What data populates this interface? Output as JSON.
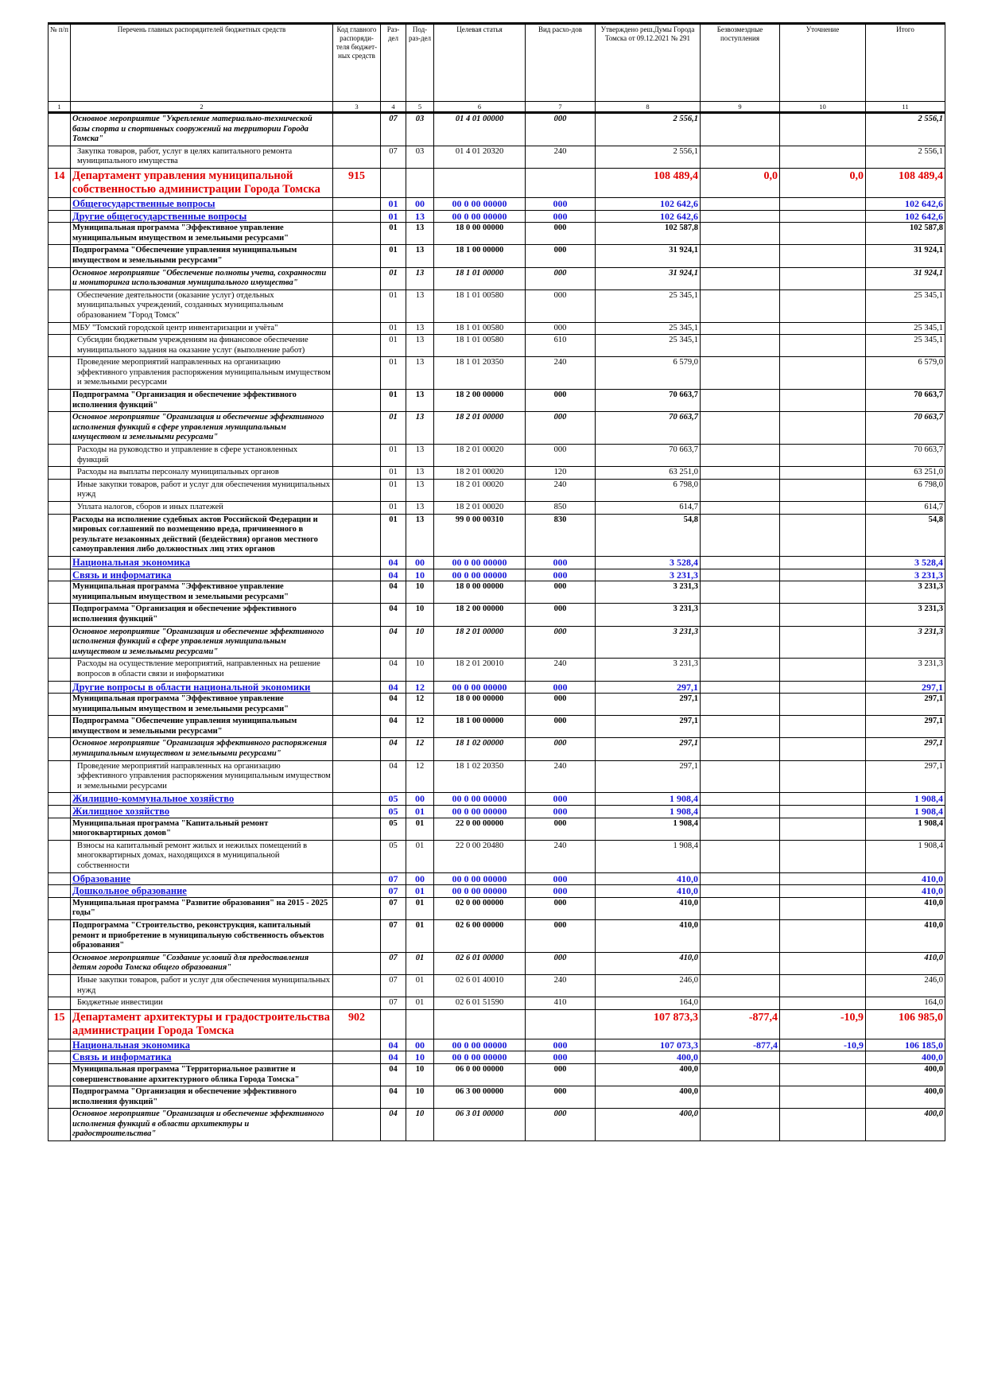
{
  "header": {
    "columns": [
      "№ п/п",
      "Перечень главных распорядителей бюджетных средств",
      "Код главного распоряди-теля бюджет-ных средств",
      "Раз-дел",
      "Под-раз-дел",
      "Целевая статья",
      "Вид расхо-дов",
      "Утверждено реш.Думы Города Томска от 09.12.2021 № 291",
      "Безвозмездные поступления",
      "Уточнение",
      "Итого"
    ],
    "numbers": [
      "1",
      "2",
      "3",
      "4",
      "5",
      "6",
      "7",
      "8",
      "9",
      "10",
      "11"
    ]
  },
  "table": {
    "rows": [
      {
        "style": "bi",
        "cells": [
          null,
          "Основное мероприятие \"Укрепление материально-технической базы спорта и спортивных сооружений на территории Города Томска\"",
          null,
          "07",
          "03",
          "01 4 01 00000",
          "000",
          "2 556,1",
          null,
          null,
          "2 556,1"
        ]
      },
      {
        "style": "normal",
        "cells": [
          null,
          "Закупка товаров, работ, услуг в целях капитального ремонта муниципального имущества",
          null,
          "07",
          "03",
          "01 4 01 20320",
          "240",
          "2 556,1",
          null,
          null,
          "2 556,1"
        ]
      },
      {
        "style": "dept",
        "cells": [
          "14",
          "Департамент управления муниципальной собственностью администрации Города Томска",
          "915",
          null,
          null,
          null,
          null,
          "108 489,4",
          "0,0",
          "0,0",
          "108 489,4"
        ]
      },
      {
        "style": "section",
        "cells": [
          null,
          "Общегосударственные вопросы",
          null,
          "01",
          "00",
          "00 0 00 00000",
          "000",
          "102 642,6",
          null,
          null,
          "102 642,6"
        ]
      },
      {
        "style": "section",
        "cells": [
          null,
          "Другие общегосударственные вопросы",
          null,
          "01",
          "13",
          "00 0 00 00000",
          "000",
          "102 642,6",
          null,
          null,
          "102 642,6"
        ]
      },
      {
        "style": "bold",
        "cells": [
          null,
          "Муниципальная программа \"Эффективное управление муниципальным имуществом и земельными ресурсами\"",
          null,
          "01",
          "13",
          "18 0 00 00000",
          "000",
          "102 587,8",
          null,
          null,
          "102 587,8"
        ]
      },
      {
        "style": "bold",
        "cells": [
          null,
          "Подпрограмма \"Обеспечение управления муниципальным имуществом и земельными ресурсами\"",
          null,
          "01",
          "13",
          "18 1 00 00000",
          "000",
          "31 924,1",
          null,
          null,
          "31 924,1"
        ]
      },
      {
        "style": "bi",
        "cells": [
          null,
          "Основное мероприятие \"Обеспечение полноты учета, сохранности и мониторинга использования муниципального имущества\"",
          null,
          "01",
          "13",
          "18 1 01 00000",
          "000",
          "31 924,1",
          null,
          null,
          "31 924,1"
        ]
      },
      {
        "style": "normal",
        "cells": [
          null,
          "Обеспечение деятельности (оказание услуг) отдельных муниципальных учреждений, созданных муниципальным образованием \"Город Томск\"",
          null,
          "01",
          "13",
          "18 1 01 00580",
          "000",
          "25 345,1",
          null,
          null,
          "25 345,1"
        ]
      },
      {
        "style": "plain",
        "cells": [
          null,
          "МБУ \"Томский городской центр инвентаризации и учёта\"",
          null,
          "01",
          "13",
          "18 1 01 00580",
          "000",
          "25 345,1",
          null,
          null,
          "25 345,1"
        ]
      },
      {
        "style": "normal",
        "cells": [
          null,
          "Субсидии бюджетным учреждениям на финансовое обеспечение муниципального задания на оказание услуг (выполнение работ)",
          null,
          "01",
          "13",
          "18 1 01 00580",
          "610",
          "25 345,1",
          null,
          null,
          "25 345,1"
        ]
      },
      {
        "style": "normal",
        "cells": [
          null,
          "Проведение мероприятий направленных на организацию эффективного управления распоряжения муниципальным имуществом и земельными ресурсами",
          null,
          "01",
          "13",
          "18 1 01 20350",
          "240",
          "6 579,0",
          null,
          null,
          "6 579,0"
        ]
      },
      {
        "style": "bold",
        "cells": [
          null,
          "Подпрограмма \"Организация и обеспечение эффективного исполнения функций\"",
          null,
          "01",
          "13",
          "18 2 00 00000",
          "000",
          "70 663,7",
          null,
          null,
          "70 663,7"
        ]
      },
      {
        "style": "bi",
        "cells": [
          null,
          "Основное мероприятие \"Организация и обеспечение эффективного исполнения функций в сфере управления муниципальным имуществом и земельными ресурсами\"",
          null,
          "01",
          "13",
          "18 2 01 00000",
          "000",
          "70 663,7",
          null,
          null,
          "70 663,7"
        ]
      },
      {
        "style": "normal",
        "cells": [
          null,
          "Расходы на руководство и управление в сфере установленных функций",
          null,
          "01",
          "13",
          "18 2 01 00020",
          "000",
          "70 663,7",
          null,
          null,
          "70 663,7"
        ]
      },
      {
        "style": "normal",
        "cells": [
          null,
          "Расходы на выплаты персоналу муниципальных органов",
          null,
          "01",
          "13",
          "18 2 01 00020",
          "120",
          "63 251,0",
          null,
          null,
          "63 251,0"
        ]
      },
      {
        "style": "normal",
        "cells": [
          null,
          "Иные закупки товаров, работ и услуг для обеспечения муниципальных нужд",
          null,
          "01",
          "13",
          "18 2 01 00020",
          "240",
          "6 798,0",
          null,
          null,
          "6 798,0"
        ]
      },
      {
        "style": "normal",
        "cells": [
          null,
          "Уплата налогов, сборов и иных платежей",
          null,
          "01",
          "13",
          "18 2 01 00020",
          "850",
          "614,7",
          null,
          null,
          "614,7"
        ]
      },
      {
        "style": "bold",
        "cells": [
          null,
          "Расходы на исполнение судебных актов Российской Федерации и мировых соглашений по возмещению вреда, причиненного в результате незаконных действий (бездействия) органов местного самоуправления либо должностных лиц этих органов",
          null,
          "01",
          "13",
          "99 0 00 00310",
          "830",
          "54,8",
          null,
          null,
          "54,8"
        ]
      },
      {
        "style": "section",
        "cells": [
          null,
          "Национальная экономика",
          null,
          "04",
          "00",
          "00 0 00 00000",
          "000",
          "3 528,4",
          null,
          null,
          "3 528,4"
        ]
      },
      {
        "style": "section",
        "cells": [
          null,
          "Связь и информатика",
          null,
          "04",
          "10",
          "00 0 00 00000",
          "000",
          "3 231,3",
          null,
          null,
          "3 231,3"
        ]
      },
      {
        "style": "bold",
        "cells": [
          null,
          "Муниципальная программа \"Эффективное управление муниципальным имуществом и земельными ресурсами\"",
          null,
          "04",
          "10",
          "18 0 00 00000",
          "000",
          "3 231,3",
          null,
          null,
          "3 231,3"
        ]
      },
      {
        "style": "bold",
        "cells": [
          null,
          "Подпрограмма \"Организация и обеспечение эффективного исполнения функций\"",
          null,
          "04",
          "10",
          "18 2 00 00000",
          "000",
          "3 231,3",
          null,
          null,
          "3 231,3"
        ]
      },
      {
        "style": "bi",
        "cells": [
          null,
          "Основное мероприятие \"Организация и обеспечение эффективного исполнения функций в сфере управления муниципальным имуществом и земельными ресурсами\"",
          null,
          "04",
          "10",
          "18 2 01 00000",
          "000",
          "3 231,3",
          null,
          null,
          "3 231,3"
        ]
      },
      {
        "style": "normal",
        "cells": [
          null,
          "Расходы на осуществление мероприятий, направленных на решение вопросов в области связи и информатики",
          null,
          "04",
          "10",
          "18 2 01 20010",
          "240",
          "3 231,3",
          null,
          null,
          "3 231,3"
        ]
      },
      {
        "style": "section",
        "cells": [
          null,
          "Другие вопросы в области национальной экономики",
          null,
          "04",
          "12",
          "00 0 00 00000",
          "000",
          "297,1",
          null,
          null,
          "297,1"
        ]
      },
      {
        "style": "bold",
        "cells": [
          null,
          "Муниципальная программа \"Эффективное управление муниципальным имуществом и земельными ресурсами\"",
          null,
          "04",
          "12",
          "18 0 00 00000",
          "000",
          "297,1",
          null,
          null,
          "297,1"
        ]
      },
      {
        "style": "bold",
        "cells": [
          null,
          "Подпрограмма \"Обеспечение управления муниципальным имуществом и земельными ресурсами\"",
          null,
          "04",
          "12",
          "18 1 00 00000",
          "000",
          "297,1",
          null,
          null,
          "297,1"
        ]
      },
      {
        "style": "bi",
        "cells": [
          null,
          "Основное мероприятие \"Организация эффективного распоряжения муниципальным имуществом и земельными ресурсами\"",
          null,
          "04",
          "12",
          "18 1 02 00000",
          "000",
          "297,1",
          null,
          null,
          "297,1"
        ]
      },
      {
        "style": "normal",
        "cells": [
          null,
          "Проведение мероприятий направленных на организацию эффективного управления распоряжения муниципальным имуществом и земельными ресурсами",
          null,
          "04",
          "12",
          "18 1 02 20350",
          "240",
          "297,1",
          null,
          null,
          "297,1"
        ]
      },
      {
        "style": "section",
        "cells": [
          null,
          "Жилищно-коммунальное хозяйство",
          null,
          "05",
          "00",
          "00 0 00 00000",
          "000",
          "1 908,4",
          null,
          null,
          "1 908,4"
        ]
      },
      {
        "style": "section",
        "cells": [
          null,
          "Жилищное хозяйство",
          null,
          "05",
          "01",
          "00 0 00 00000",
          "000",
          "1 908,4",
          null,
          null,
          "1 908,4"
        ]
      },
      {
        "style": "bold",
        "cells": [
          null,
          "Муниципальная программа \"Капитальный ремонт многоквартирных домов\"",
          null,
          "05",
          "01",
          "22 0 00 00000",
          "000",
          "1 908,4",
          null,
          null,
          "1 908,4"
        ]
      },
      {
        "style": "normal",
        "cells": [
          null,
          "Взносы на капитальный ремонт жилых и нежилых помещений в многоквартирных домах, находящихся в муниципальной собственности",
          null,
          "05",
          "01",
          "22 0 00 20480",
          "240",
          "1 908,4",
          null,
          null,
          "1 908,4"
        ]
      },
      {
        "style": "section",
        "cells": [
          null,
          "Образование",
          null,
          "07",
          "00",
          "00 0 00 00000",
          "000",
          "410,0",
          null,
          null,
          "410,0"
        ]
      },
      {
        "style": "section",
        "cells": [
          null,
          "Дошкольное образование",
          null,
          "07",
          "01",
          "00 0 00 00000",
          "000",
          "410,0",
          null,
          null,
          "410,0"
        ]
      },
      {
        "style": "bold",
        "cells": [
          null,
          "Муниципальная программа \"Развитие образования\" на 2015 - 2025 годы\"",
          null,
          "07",
          "01",
          "02 0 00 00000",
          "000",
          "410,0",
          null,
          null,
          "410,0"
        ]
      },
      {
        "style": "bold",
        "cells": [
          null,
          "Подпрограмма \"Строительство, реконструкция, капитальный ремонт и приобретение в муниципальную собственность объектов образования\"",
          null,
          "07",
          "01",
          "02 6 00 00000",
          "000",
          "410,0",
          null,
          null,
          "410,0"
        ]
      },
      {
        "style": "bi",
        "cells": [
          null,
          "Основное мероприятие \"Создание условий для предоставления детям города Томска общего образования\"",
          null,
          "07",
          "01",
          "02 6 01 00000",
          "000",
          "410,0",
          null,
          null,
          "410,0"
        ]
      },
      {
        "style": "normal",
        "cells": [
          null,
          "Иные закупки товаров, работ и услуг для обеспечения муниципальных нужд",
          null,
          "07",
          "01",
          "02 6 01 40010",
          "240",
          "246,0",
          null,
          null,
          "246,0"
        ]
      },
      {
        "style": "normal",
        "cells": [
          null,
          "Бюджетные инвестиции",
          null,
          "07",
          "01",
          "02 6 01 51590",
          "410",
          "164,0",
          null,
          null,
          "164,0"
        ]
      },
      {
        "style": "dept",
        "cells": [
          "15",
          "Департамент архитектуры и градостроительства администрации Города Томска",
          "902",
          null,
          null,
          null,
          null,
          "107 873,3",
          "-877,4",
          "-10,9",
          "106 985,0"
        ]
      },
      {
        "style": "section",
        "cells": [
          null,
          "Национальная экономика",
          null,
          "04",
          "00",
          "00 0 00 00000",
          "000",
          "107 073,3",
          "-877,4",
          "-10,9",
          "106 185,0"
        ]
      },
      {
        "style": "section",
        "cells": [
          null,
          "Связь и информатика",
          null,
          "04",
          "10",
          "00 0 00 00000",
          "000",
          "400,0",
          null,
          null,
          "400,0"
        ]
      },
      {
        "style": "bold",
        "cells": [
          null,
          "Муниципальная программа \"Территориальное развитие и совершенствование архитектурного облика Города Томска\"",
          null,
          "04",
          "10",
          "06 0 00 00000",
          "000",
          "400,0",
          null,
          null,
          "400,0"
        ]
      },
      {
        "style": "bold",
        "cells": [
          null,
          "Подпрограмма \"Организация и обеспечение эффективного исполнения функций\"",
          null,
          "04",
          "10",
          "06 3 00 00000",
          "000",
          "400,0",
          null,
          null,
          "400,0"
        ]
      },
      {
        "style": "bi",
        "cells": [
          null,
          "Основное мероприятие \"Организация и обеспечение эффективного исполнения функций в области архитектуры и градостроительства\"",
          null,
          "04",
          "10",
          "06 3 01 00000",
          "000",
          "400,0",
          null,
          null,
          "400,0"
        ]
      }
    ]
  }
}
